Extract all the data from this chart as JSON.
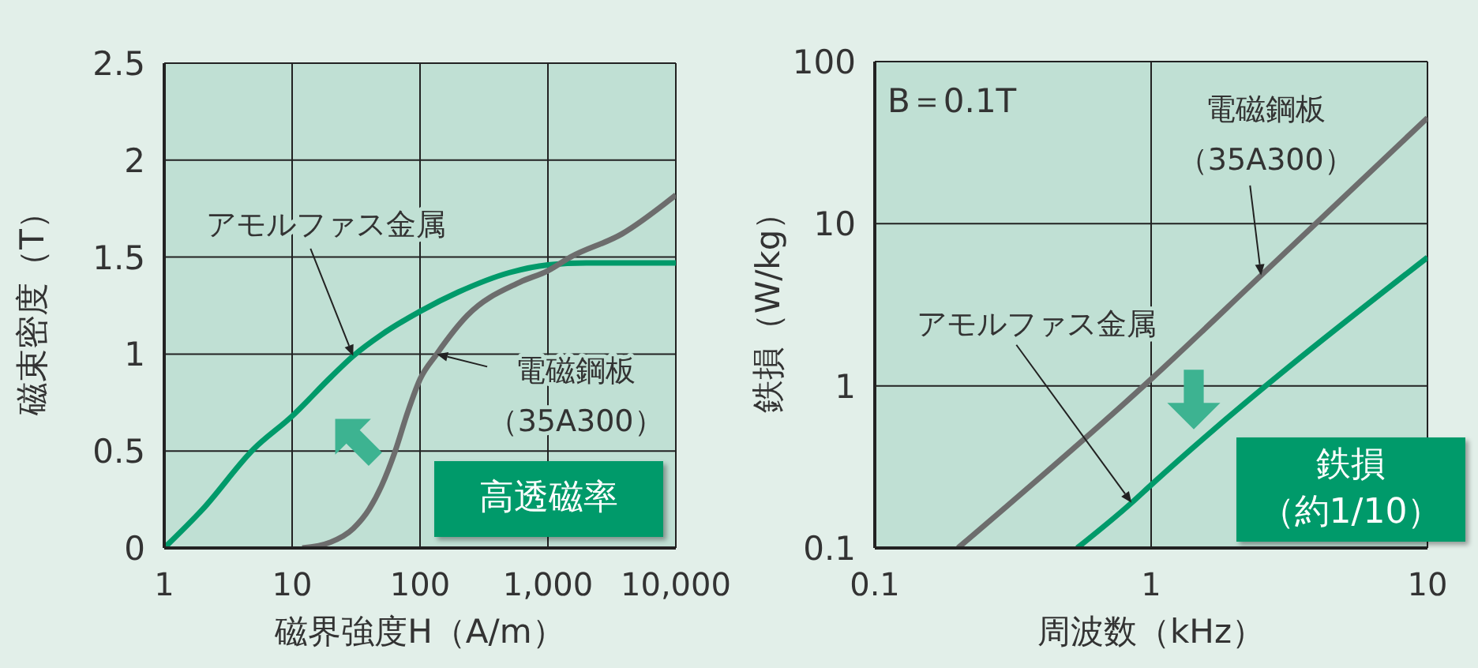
{
  "chart_data": [
    {
      "type": "line",
      "xlabel": "磁界強度H（A/m）",
      "ylabel": "磁束密度（T）",
      "log": "x",
      "xlim": [
        1,
        10000
      ],
      "xticks": [
        1,
        10,
        100,
        {
          "value": 1000,
          "label": "1,000"
        },
        {
          "value": 10000,
          "label": "10,000"
        }
      ],
      "ylim": [
        0,
        2.5
      ],
      "yticks": [
        0,
        0.5,
        1,
        1.5,
        2,
        2.5
      ],
      "grid": true,
      "annotations": [
        "高透磁率"
      ],
      "series": [
        {
          "name": "アモルファス金属",
          "color": "#009a6a",
          "x": [
            1,
            2,
            5,
            10,
            20,
            30,
            50,
            100,
            200,
            500,
            1000,
            2000,
            10000
          ],
          "values": [
            0,
            0.2,
            0.51,
            0.68,
            0.88,
            0.99,
            1.1,
            1.22,
            1.32,
            1.42,
            1.46,
            1.47,
            1.47
          ]
        },
        {
          "name": "電磁鋼板（35A300）",
          "color": "#6d6d6d",
          "x": [
            12,
            20,
            30,
            40,
            50,
            64,
            80,
            100,
            135,
            235,
            600,
            1000,
            1500,
            3800,
            10000
          ],
          "values": [
            0,
            0.03,
            0.1,
            0.2,
            0.32,
            0.5,
            0.7,
            0.87,
            1.0,
            1.2,
            1.37,
            1.43,
            1.5,
            1.62,
            1.82
          ]
        }
      ]
    },
    {
      "type": "line",
      "xlabel": "周波数（kHz）",
      "ylabel": "鉄損（W/kg）",
      "log": "xy",
      "xlim": [
        0.1,
        10
      ],
      "xticks": [
        0.1,
        1,
        10
      ],
      "ylim": [
        0.1,
        100
      ],
      "yticks": [
        0.1,
        1,
        10,
        100
      ],
      "grid": true,
      "annotations": [
        "B＝0.1T",
        "鉄損（約1/10）"
      ],
      "series": [
        {
          "name": "アモルファス金属",
          "color": "#009a6a",
          "x": [
            0.54,
            0.85,
            1,
            10
          ],
          "values": [
            0.1,
            0.19,
            0.245,
            6.2
          ]
        },
        {
          "name": "電磁鋼板（35A300）",
          "color": "#6d6d6d",
          "x": [
            0.2,
            1,
            2.5,
            10
          ],
          "values": [
            0.1,
            1.1,
            4.8,
            45
          ]
        }
      ]
    }
  ]
}
